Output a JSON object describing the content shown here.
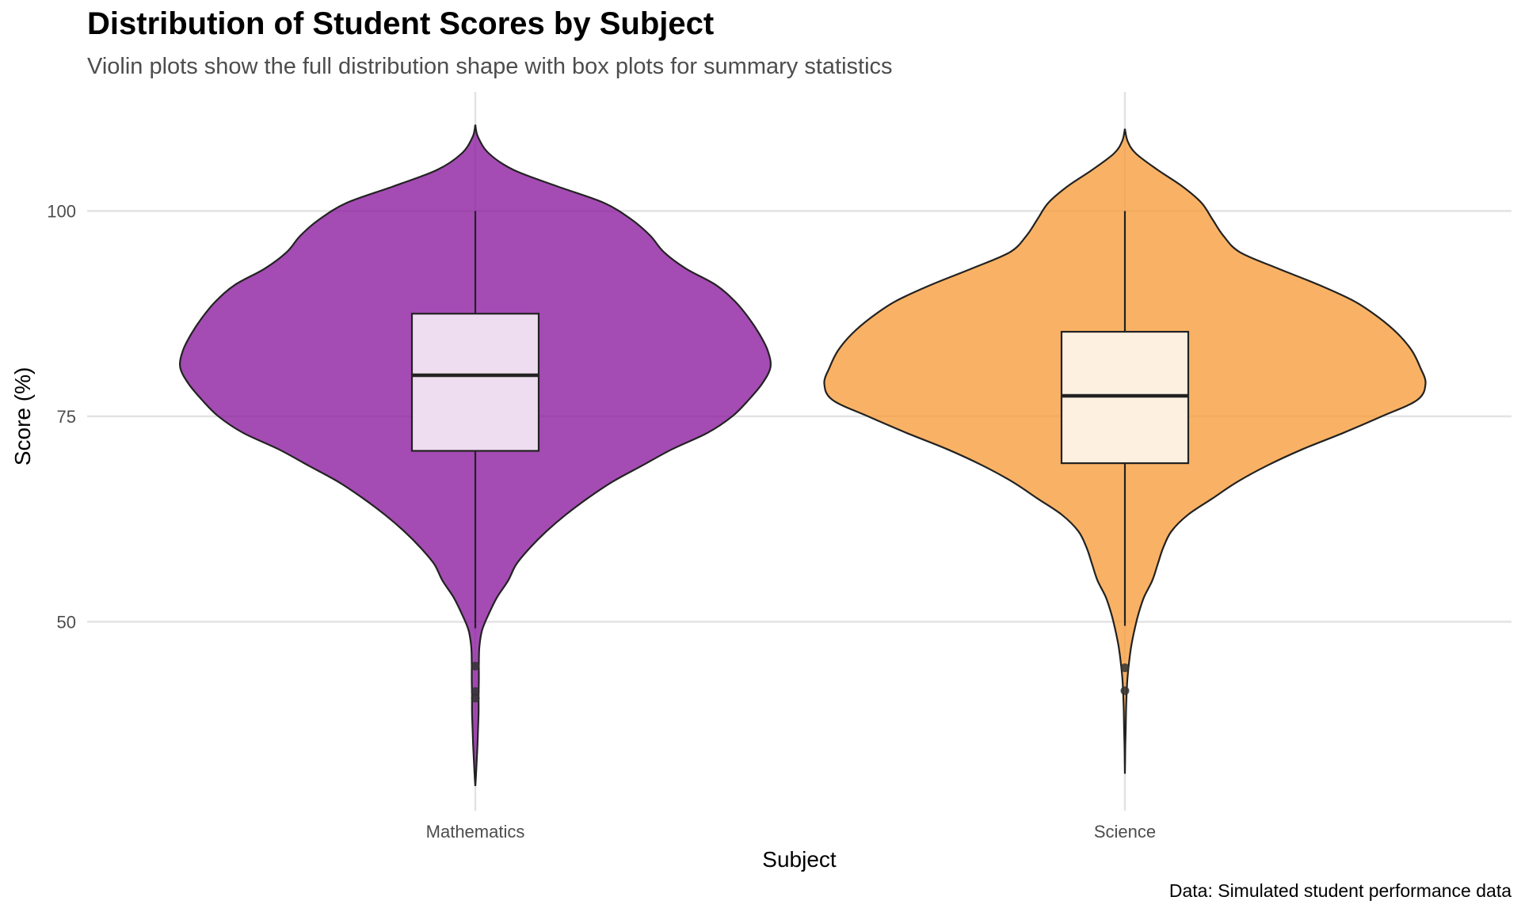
{
  "title": "Distribution of Student Scores by Subject",
  "subtitle": "Violin plots show the full distribution shape with box plots for summary statistics",
  "caption": "Data: Simulated student performance data",
  "chart_data": {
    "type": "violin",
    "xlabel": "Subject",
    "ylabel": "Score (%)",
    "ylim": [
      27,
      112
    ],
    "yticks": [
      50,
      75,
      100
    ],
    "grid": true,
    "categories": [
      "Mathematics",
      "Science"
    ],
    "series": [
      {
        "category": "Mathematics",
        "color": "#8B1A9E",
        "box_fill": "#EEDDF0",
        "box": {
          "q1": 70.8,
          "median": 80.0,
          "q3": 87.5,
          "whisker_low": 49.2,
          "whisker_high": 100.0
        },
        "outliers": [
          44.6,
          41.5,
          40.7
        ],
        "density_range": [
          30.0,
          110.5
        ],
        "density_profile": [
          [
            110.5,
            0.0
          ],
          [
            109.0,
            0.01
          ],
          [
            107.0,
            0.05
          ],
          [
            105.0,
            0.14
          ],
          [
            103.0,
            0.3
          ],
          [
            101.0,
            0.47
          ],
          [
            99.0,
            0.57
          ],
          [
            97.0,
            0.64
          ],
          [
            95.0,
            0.69
          ],
          [
            93.0,
            0.77
          ],
          [
            91.0,
            0.88
          ],
          [
            89.0,
            0.95
          ],
          [
            87.0,
            1.0
          ],
          [
            85.0,
            1.04
          ],
          [
            83.0,
            1.07
          ],
          [
            81.0,
            1.08
          ],
          [
            79.0,
            1.05
          ],
          [
            77.0,
            1.0
          ],
          [
            75.0,
            0.94
          ],
          [
            73.0,
            0.85
          ],
          [
            71.0,
            0.72
          ],
          [
            69.0,
            0.61
          ],
          [
            67.0,
            0.5
          ],
          [
            65.0,
            0.41
          ],
          [
            63.0,
            0.33
          ],
          [
            61.0,
            0.26
          ],
          [
            59.0,
            0.2
          ],
          [
            57.0,
            0.15
          ],
          [
            55.0,
            0.12
          ],
          [
            53.0,
            0.08
          ],
          [
            51.0,
            0.05
          ],
          [
            49.0,
            0.025
          ],
          [
            47.0,
            0.015
          ],
          [
            45.0,
            0.013
          ],
          [
            43.0,
            0.013
          ],
          [
            41.0,
            0.012
          ],
          [
            39.0,
            0.012
          ],
          [
            37.0,
            0.01
          ],
          [
            35.0,
            0.008
          ],
          [
            33.0,
            0.005
          ],
          [
            31.0,
            0.002
          ],
          [
            30.0,
            0.0
          ]
        ]
      },
      {
        "category": "Science",
        "color": "#F79C3A",
        "box_fill": "#FDF0E1",
        "box": {
          "q1": 69.3,
          "median": 77.5,
          "q3": 85.3,
          "whisker_low": 49.5,
          "whisker_high": 100.0
        },
        "outliers": [
          44.4,
          41.6
        ],
        "density_range": [
          31.5,
          110.0
        ],
        "density_profile": [
          [
            110.0,
            0.0
          ],
          [
            108.5,
            0.01
          ],
          [
            107.0,
            0.04
          ],
          [
            105.0,
            0.12
          ],
          [
            103.0,
            0.21
          ],
          [
            101.0,
            0.28
          ],
          [
            99.0,
            0.32
          ],
          [
            97.0,
            0.36
          ],
          [
            95.0,
            0.42
          ],
          [
            93.0,
            0.56
          ],
          [
            91.0,
            0.71
          ],
          [
            89.0,
            0.84
          ],
          [
            87.0,
            0.93
          ],
          [
            85.0,
            1.0
          ],
          [
            83.0,
            1.05
          ],
          [
            81.0,
            1.08
          ],
          [
            79.0,
            1.1
          ],
          [
            77.0,
            1.07
          ],
          [
            75.0,
            0.94
          ],
          [
            73.0,
            0.8
          ],
          [
            71.0,
            0.65
          ],
          [
            69.0,
            0.52
          ],
          [
            67.0,
            0.41
          ],
          [
            65.0,
            0.32
          ],
          [
            63.0,
            0.23
          ],
          [
            61.0,
            0.17
          ],
          [
            59.0,
            0.14
          ],
          [
            57.0,
            0.12
          ],
          [
            55.0,
            0.1
          ],
          [
            53.0,
            0.07
          ],
          [
            51.0,
            0.05
          ],
          [
            49.0,
            0.035
          ],
          [
            47.0,
            0.023
          ],
          [
            45.0,
            0.015
          ],
          [
            43.0,
            0.009
          ],
          [
            41.0,
            0.006
          ],
          [
            39.0,
            0.004
          ],
          [
            37.0,
            0.003
          ],
          [
            35.0,
            0.0015
          ],
          [
            33.0,
            0.0007
          ],
          [
            31.5,
            0.0
          ]
        ]
      }
    ]
  }
}
